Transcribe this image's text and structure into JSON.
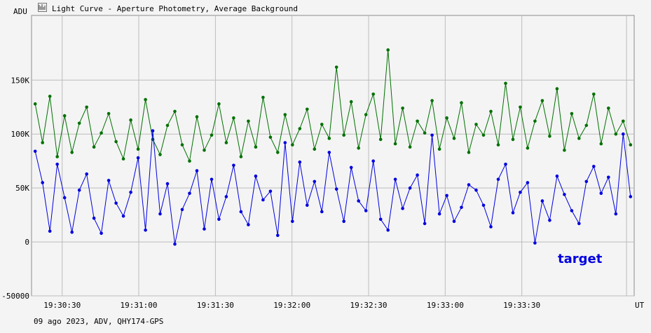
{
  "window": {
    "title": "Light Curve - Aperture Photometry, Average Background",
    "icon": "light-curve-icon"
  },
  "footer": {
    "caption": "09 ago 2023, ADV, QHY174-GPS"
  },
  "colors": {
    "background": "#f4f4f4",
    "grid": "#bcbcbc",
    "axis": "#000000",
    "comparison_series": "#007000",
    "target_series": "#0000e0"
  },
  "chart_data": {
    "type": "line",
    "ylabel": "ADU",
    "xlabel": "UT",
    "ylim": [
      -50000,
      210000
    ],
    "xlim": [
      "19:30:18",
      "19:34:14"
    ],
    "y_ticks": [
      {
        "value": 150000,
        "label": "150K"
      },
      {
        "value": 100000,
        "label": "100K"
      },
      {
        "value": 50000,
        "label": "50K"
      },
      {
        "value": 0,
        "label": "0"
      },
      {
        "value": -50000,
        "label": "-50000"
      }
    ],
    "x_ticks": [
      "19:30:30",
      "19:31:00",
      "19:31:30",
      "19:32:00",
      "19:32:30",
      "19:33:00",
      "19:33:30"
    ],
    "extra_gridline_x": "19:34:11",
    "grid": true,
    "markers": true,
    "annotations": [
      {
        "text": "target",
        "color": "#0000e0"
      }
    ],
    "series": [
      {
        "role": "target",
        "color": "#0000e0",
        "sampled_values": [
          84000,
          55000,
          10000,
          72000,
          41000,
          9000,
          48000,
          63000,
          22000,
          8000,
          57000,
          36000,
          24000,
          46000,
          78000,
          11000,
          103000,
          26000,
          54000,
          -2000,
          30000,
          45000,
          66000,
          12000,
          58000,
          21000,
          42000,
          71000,
          28000,
          16000,
          61000,
          39000,
          47000,
          6000,
          92000,
          19000,
          74000,
          34000,
          56000,
          28000,
          83000,
          49000,
          19000,
          69000,
          38000,
          29000,
          75000,
          21000,
          11000,
          58000,
          31000,
          50000,
          62000,
          17000,
          99000,
          26000,
          43000,
          19000,
          32000,
          53000,
          48000,
          34000,
          14000,
          58000,
          72000,
          27000,
          46000,
          55000,
          -1000,
          38000,
          20000,
          61000,
          44000,
          29000,
          17000,
          56000,
          70000,
          45000,
          60000,
          26000,
          100000,
          42000
        ]
      },
      {
        "role": "comparison",
        "color": "#007000",
        "sampled_values": [
          128000,
          92000,
          135000,
          79000,
          117000,
          83000,
          110000,
          125000,
          88000,
          101000,
          119000,
          93000,
          77000,
          113000,
          86000,
          132000,
          95000,
          81000,
          108000,
          121000,
          90000,
          75000,
          116000,
          85000,
          99000,
          128000,
          92000,
          115000,
          79000,
          112000,
          88000,
          134000,
          97000,
          83000,
          118000,
          90000,
          105000,
          123000,
          86000,
          109000,
          96000,
          162000,
          99000,
          130000,
          87000,
          118000,
          137000,
          95000,
          178000,
          91000,
          124000,
          88000,
          112000,
          101000,
          131000,
          86000,
          115000,
          96000,
          129000,
          83000,
          109000,
          99000,
          121000,
          90000,
          147000,
          95000,
          125000,
          87000,
          112000,
          131000,
          98000,
          142000,
          85000,
          119000,
          96000,
          108000,
          137000,
          91000,
          124000,
          100000,
          112000,
          90000
        ]
      }
    ]
  }
}
